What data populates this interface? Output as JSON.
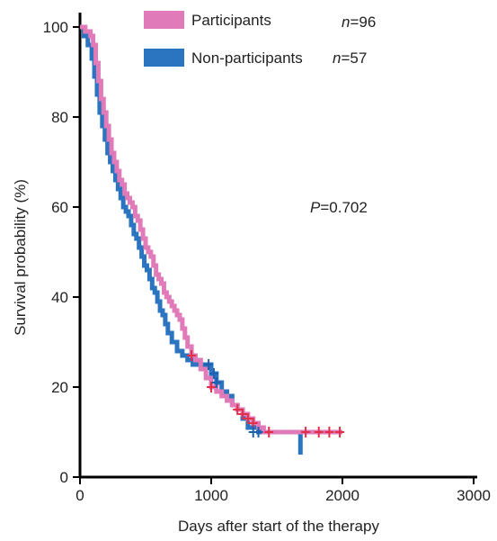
{
  "chart_data": {
    "type": "line",
    "subtype": "kaplan-meier",
    "xlabel": "Days after start of the therapy",
    "ylabel": "Survival probability (%)",
    "xlim": [
      0,
      3000
    ],
    "ylim": [
      0,
      100
    ],
    "xticks": [
      0,
      1000,
      2000,
      3000
    ],
    "yticks": [
      0,
      20,
      40,
      60,
      80,
      100
    ],
    "grid": false,
    "legend_position": "top",
    "annotation": {
      "prefix": "P",
      "value": "=0.702"
    },
    "series": [
      {
        "name": "Participants",
        "n_prefix": "n",
        "n_value": "=96",
        "color": "#e07ab8",
        "x": [
          0,
          40,
          80,
          100,
          120,
          140,
          160,
          180,
          200,
          220,
          240,
          260,
          280,
          300,
          320,
          340,
          360,
          380,
          400,
          420,
          440,
          460,
          480,
          500,
          520,
          540,
          560,
          580,
          600,
          620,
          640,
          660,
          680,
          700,
          720,
          740,
          760,
          780,
          800,
          820,
          850,
          880,
          920,
          960,
          1000,
          1040,
          1080,
          1120,
          1160,
          1200,
          1240,
          1280,
          1320,
          1360,
          1400,
          1700,
          2000
        ],
        "y": [
          100,
          99,
          98,
          96,
          92,
          88,
          84,
          81,
          78,
          75,
          72,
          70,
          68,
          66,
          65,
          63,
          62,
          61,
          60,
          58,
          57,
          55,
          53,
          51,
          50,
          49,
          47,
          45,
          44,
          43,
          41,
          40,
          39,
          38,
          37,
          36,
          35,
          33,
          31,
          29,
          27,
          26,
          24,
          22,
          20,
          19,
          18,
          17,
          16,
          15,
          14,
          13,
          12,
          11,
          10,
          10,
          10
        ],
        "censored_x": [
          850,
          1000,
          1200,
          1240,
          1280,
          1320,
          1440,
          1720,
          1820,
          1900,
          1980
        ],
        "censored_y": [
          27,
          20,
          15,
          14,
          13,
          12,
          10,
          10,
          10,
          10,
          10
        ]
      },
      {
        "name": "Non-participants",
        "n_prefix": "n",
        "n_value": "=57",
        "color": "#2a74c0",
        "x": [
          0,
          30,
          60,
          90,
          110,
          130,
          150,
          170,
          190,
          210,
          230,
          250,
          270,
          290,
          310,
          330,
          350,
          370,
          390,
          410,
          430,
          450,
          470,
          490,
          510,
          530,
          550,
          570,
          590,
          610,
          630,
          650,
          670,
          700,
          740,
          780,
          820,
          860,
          900,
          960,
          1000,
          1040,
          1080,
          1120,
          1160,
          1200,
          1240,
          1280,
          1320,
          1360,
          1400,
          1660,
          1680
        ],
        "y": [
          100,
          98,
          96,
          93,
          89,
          85,
          81,
          78,
          75,
          72,
          70,
          68,
          66,
          64,
          62,
          60,
          59,
          58,
          56,
          54,
          53,
          51,
          49,
          47,
          46,
          44,
          42,
          41,
          39,
          37,
          36,
          34,
          32,
          30,
          28,
          27,
          26,
          25,
          25,
          25,
          23,
          21,
          19,
          18,
          16,
          15,
          13,
          11,
          11,
          10,
          10,
          10,
          5
        ],
        "censored_x": [
          980,
          1020,
          1040,
          1320,
          1360
        ],
        "censored_y": [
          25,
          23,
          21,
          10,
          10
        ]
      }
    ]
  }
}
